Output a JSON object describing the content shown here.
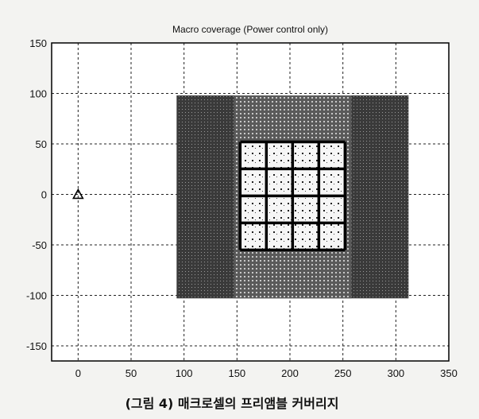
{
  "chart_data": {
    "type": "scatter",
    "title": "Macro coverage (Power control only)",
    "xlabel": "",
    "ylabel": "",
    "xlim": [
      -25,
      350
    ],
    "ylim": [
      -165,
      150
    ],
    "xticks": [
      0,
      50,
      100,
      150,
      200,
      250,
      300,
      350
    ],
    "yticks": [
      -150,
      -100,
      -50,
      0,
      50,
      100,
      150
    ],
    "grid": true,
    "series": [
      {
        "marker": "triangle",
        "points": [
          {
            "x": 0,
            "y": 0
          }
        ]
      }
    ],
    "regions": [
      {
        "fill": "dense",
        "x": [
          93,
          312
        ],
        "y": [
          -103,
          98
        ]
      },
      {
        "fill": "medium",
        "x": [
          147,
          258
        ],
        "y": [
          -103,
          98
        ]
      },
      {
        "fill": "sparse",
        "x": [
          153,
          252
        ],
        "y": [
          -55,
          52
        ]
      }
    ],
    "block_grid": {
      "x_edges": [
        153,
        177.75,
        202.5,
        227.25,
        252
      ],
      "y_edges": [
        -55,
        -28.25,
        -1.5,
        25.25,
        52
      ]
    },
    "colors": {
      "region_dense": "#3a3a3a",
      "region_medium": "#6e6e6e",
      "region_sparse": "#f4f4f4",
      "block_grid": "#000000"
    }
  },
  "caption": "(그림 4) 매크로셀의 프리앰블 커버리지"
}
